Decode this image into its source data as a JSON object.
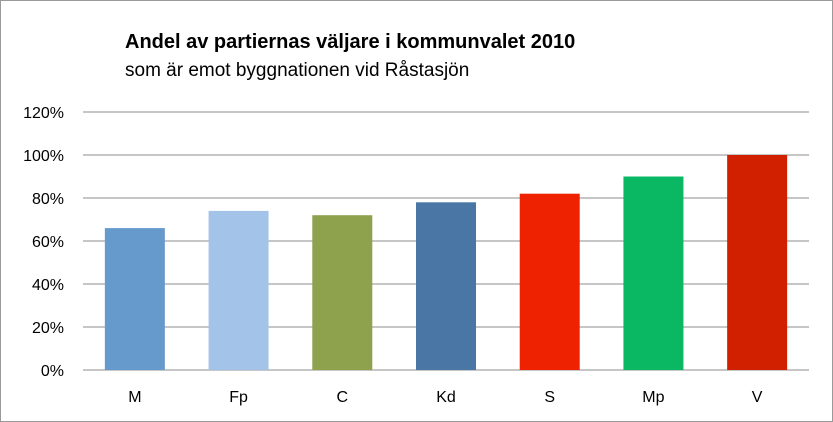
{
  "chart_data": {
    "type": "bar",
    "title": "Andel av partiernas väljare i kommunvalet 2010",
    "subtitle": "som är emot byggnationen vid Råstasjön",
    "categories": [
      "M",
      "Fp",
      "C",
      "Kd",
      "S",
      "Mp",
      "V"
    ],
    "values": [
      66,
      74,
      72,
      78,
      82,
      90,
      100
    ],
    "colors": [
      "#6699cc",
      "#a3c4e8",
      "#8ea24e",
      "#4a76a6",
      "#ee2200",
      "#0ab864",
      "#d02000"
    ],
    "y_ticks": [
      "0%",
      "20%",
      "40%",
      "60%",
      "80%",
      "100%",
      "120%"
    ],
    "ylim": [
      0,
      120
    ],
    "y_unit": "%",
    "grid": true,
    "legend": "none",
    "xlabel": "",
    "ylabel": ""
  }
}
